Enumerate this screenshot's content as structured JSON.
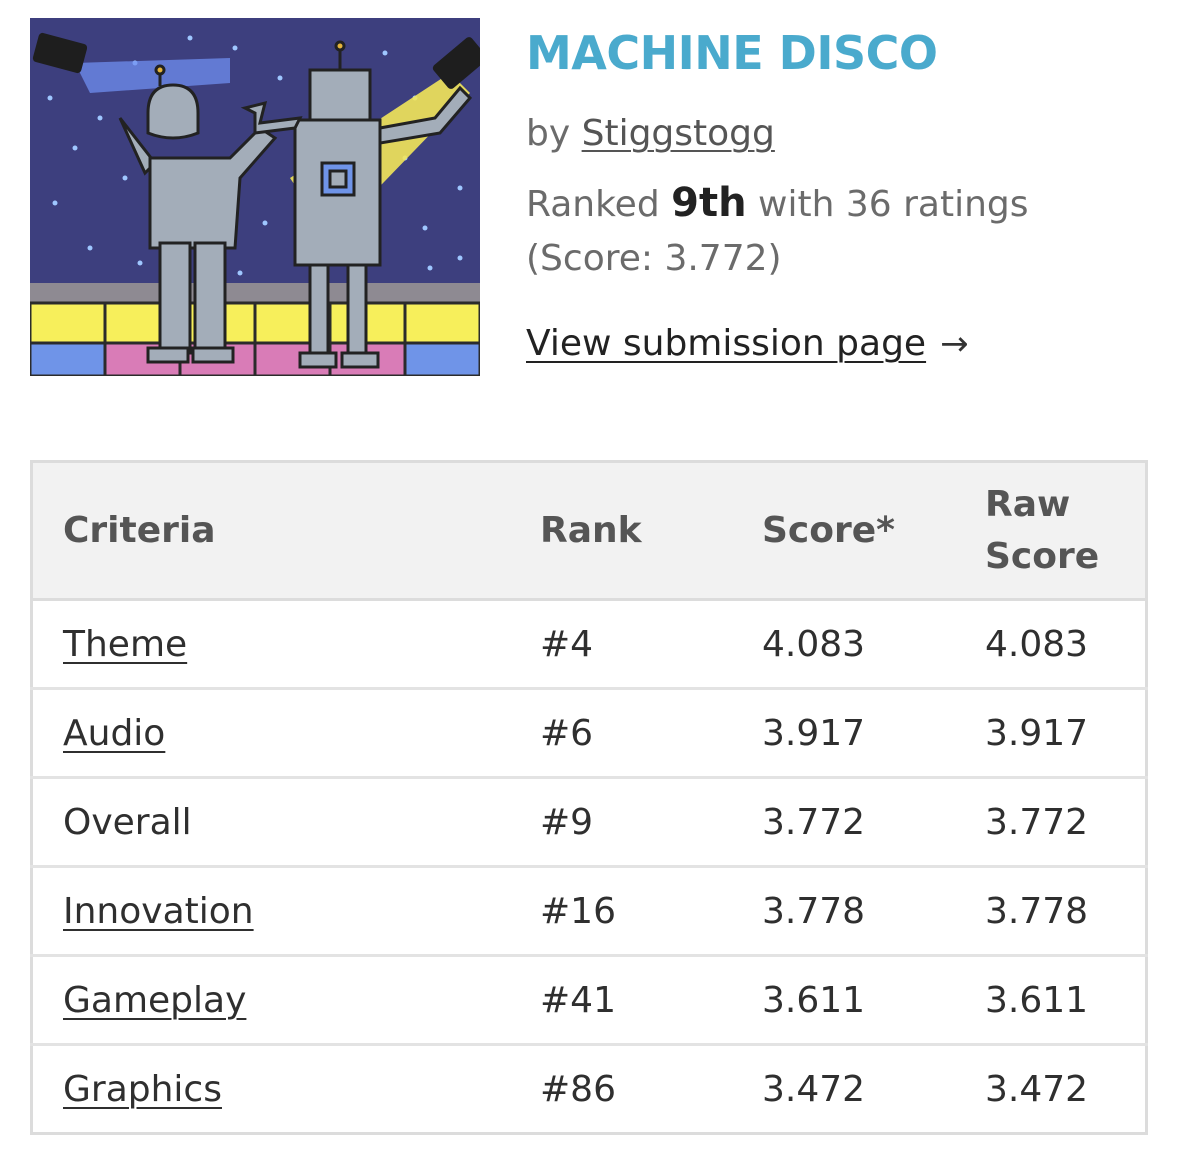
{
  "colors": {
    "title": "#4aaacd",
    "sky": "#3d3f7e",
    "floor_yellow": "#f7ef5b",
    "floor_pink": "#d97cb7",
    "floor_blue": "#6f94e8",
    "robot_gray": "#a3adb9"
  },
  "game": {
    "title": "MACHINE DISCO",
    "by_prefix": "by",
    "author": "Stiggstogg",
    "ranked_prefix": "Ranked",
    "place": "9th",
    "ratings_text": "with 36 ratings",
    "score_text": "(Score: 3.772)",
    "view_link": "View submission page",
    "arrow": "→"
  },
  "table": {
    "headers": {
      "criteria": "Criteria",
      "rank": "Rank",
      "score": "Score*",
      "raw_line1": "Raw",
      "raw_line2": "Score"
    },
    "rows": [
      {
        "criteria": "Theme",
        "rank": "#4",
        "score": "4.083",
        "raw": "4.083"
      },
      {
        "criteria": "Audio",
        "rank": "#6",
        "score": "3.917",
        "raw": "3.917"
      },
      {
        "criteria": "Overall",
        "rank": "#9",
        "score": "3.772",
        "raw": "3.772"
      },
      {
        "criteria": "Innovation",
        "rank": "#16",
        "score": "3.778",
        "raw": "3.778"
      },
      {
        "criteria": "Gameplay",
        "rank": "#41",
        "score": "3.611",
        "raw": "3.611"
      },
      {
        "criteria": "Graphics",
        "rank": "#86",
        "score": "3.472",
        "raw": "3.472"
      }
    ]
  }
}
